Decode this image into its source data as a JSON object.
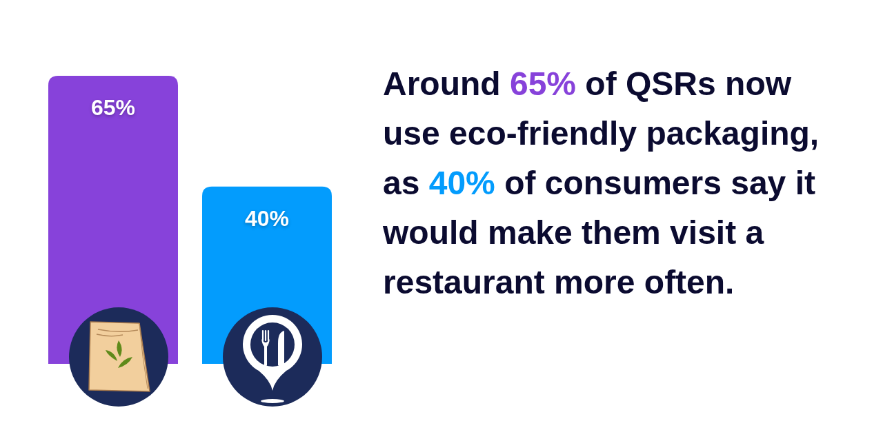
{
  "chart_data": {
    "type": "bar",
    "title": "Around 65% of QSRs now use eco-friendly packaging, as 40% of consumers say it would make them visit a restaurant more often.",
    "categories": [
      null,
      null
    ],
    "values": [
      65,
      40
    ],
    "colors": [
      "#8742da",
      "#039cfd"
    ],
    "value_labels": [
      "65%",
      "40%"
    ]
  }
}
